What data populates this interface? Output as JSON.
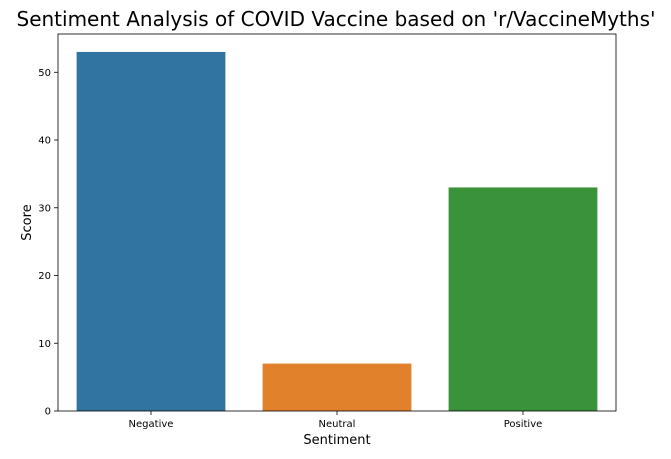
{
  "chart_data": {
    "type": "bar",
    "title": "Sentiment Analysis of COVID Vaccine based on 'r/VaccineMyths'",
    "xlabel": "Sentiment",
    "ylabel": "Score",
    "categories": [
      "Negative",
      "Neutral",
      "Positive"
    ],
    "values": [
      53,
      7,
      33
    ],
    "colors": [
      "#3274a1",
      "#e1812c",
      "#3a923a"
    ],
    "ylim": [
      0,
      55.65
    ],
    "yticks": [
      0,
      10,
      20,
      30,
      40,
      50
    ],
    "grid": false,
    "legend": "none"
  }
}
